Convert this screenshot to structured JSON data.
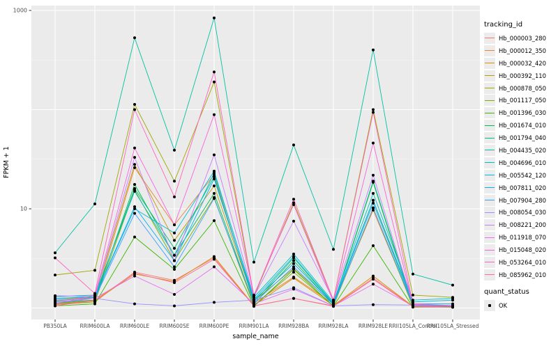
{
  "figure": {
    "x_axis_title": "sample_name",
    "y_axis_title": "FPKM + 1"
  },
  "legend": {
    "tracking_title": "tracking_id",
    "quant_title": "quant_status",
    "quant_ok_label": "OK"
  },
  "colors": {
    "panel_bg": "#EBEBEB",
    "grid": "#FFFFFF",
    "tick": "#333333",
    "tick_label": "#4D4D4D",
    "point": "#000000",
    "legend_key_bg": "#ECECEC"
  },
  "chart_data": {
    "type": "line",
    "title": "",
    "xlabel": "sample_name",
    "ylabel": "FPKM + 1",
    "y_scale": "log10",
    "ylim": [
      0.78,
      1150
    ],
    "grid": true,
    "legend_position": "right",
    "y_ticks": [
      {
        "label": "1000",
        "value": 1000
      },
      {
        "label": "10",
        "value": 10
      }
    ],
    "y_gridlines_major": [
      1,
      10,
      100,
      1000
    ],
    "y_gridlines_minor": [
      3.162,
      31.62,
      316.2
    ],
    "categories": [
      "PB350LA",
      "RRIM600LA",
      "RRIM600LE",
      "RRIM600SE",
      "RRIM600PE",
      "RRIM901LA",
      "RRIM928BA",
      "RRIM928LA",
      "RRIM928LE",
      "RRII105LA_Control",
      "RRII105LA_Stressed"
    ],
    "quant_status": "OK",
    "series": [
      {
        "name": "Hb_000003_280",
        "color": "#F8766D",
        "values": [
          1.08,
          1.15,
          2.3,
          1.9,
          3.2,
          1.05,
          1.25,
          1.05,
          2.0,
          1.04,
          1.03
        ]
      },
      {
        "name": "Hb_000012_350",
        "color": "#EA8331",
        "values": [
          1.15,
          1.2,
          26,
          6.9,
          22,
          1.12,
          2.05,
          1.1,
          9.7,
          1.06,
          1.04
        ]
      },
      {
        "name": "Hb_000032_420",
        "color": "#D89000",
        "values": [
          1.1,
          1.18,
          2.2,
          1.85,
          3.3,
          1.06,
          2.0,
          1.06,
          2.1,
          1.04,
          1.02
        ]
      },
      {
        "name": "Hb_000392_110",
        "color": "#C09B00",
        "values": [
          1.2,
          1.3,
          28,
          4.8,
          17,
          1.18,
          2.5,
          1.1,
          12.2,
          1.08,
          1.05
        ]
      },
      {
        "name": "Hb_000878_050",
        "color": "#A3A500",
        "values": [
          2.15,
          2.4,
          113,
          19,
          190,
          1.3,
          11.5,
          1.2,
          100,
          1.35,
          1.28
        ]
      },
      {
        "name": "Hb_001117_050",
        "color": "#7CAE00",
        "values": [
          1.1,
          1.15,
          15.5,
          3.0,
          13,
          1.06,
          2.3,
          1.05,
          10.2,
          1.03,
          1.02
        ]
      },
      {
        "name": "Hb_001396_030",
        "color": "#39B600",
        "values": [
          1.05,
          1.1,
          5.2,
          2.45,
          7.6,
          1.04,
          2.45,
          1.04,
          4.25,
          1.02,
          1.02
        ]
      },
      {
        "name": "Hb_001674_010",
        "color": "#00BB4E",
        "values": [
          1.12,
          1.2,
          17.6,
          3.4,
          14.3,
          1.1,
          3.0,
          1.08,
          18.5,
          1.05,
          1.04
        ]
      },
      {
        "name": "Hb_001794_040",
        "color": "#00BF7D",
        "values": [
          1.18,
          1.28,
          16,
          4.0,
          21,
          1.15,
          3.2,
          1.1,
          19,
          1.08,
          1.06
        ]
      },
      {
        "name": "Hb_004435_020",
        "color": "#00C1A3",
        "values": [
          3.6,
          11.2,
          530,
          39,
          840,
          2.9,
          44,
          3.9,
          400,
          2.2,
          1.7
        ]
      },
      {
        "name": "Hb_004696_010",
        "color": "#00BFC4",
        "values": [
          1.3,
          1.35,
          15,
          3.4,
          23,
          1.28,
          3.5,
          1.15,
          14.3,
          1.2,
          1.25
        ]
      },
      {
        "name": "Hb_005542_120",
        "color": "#00BAE0",
        "values": [
          1.25,
          1.3,
          10,
          5.7,
          24,
          1.22,
          3.3,
          1.12,
          12.2,
          1.15,
          1.2
        ]
      },
      {
        "name": "Hb_007811_020",
        "color": "#00B0F6",
        "values": [
          1.24,
          1.3,
          10.5,
          3.0,
          20,
          1.2,
          2.8,
          1.1,
          11.4,
          1.1,
          1.1
        ]
      },
      {
        "name": "Hb_007904_280",
        "color": "#35A2FF",
        "values": [
          1.15,
          1.25,
          9.0,
          2.6,
          12.7,
          1.12,
          2.6,
          1.08,
          10.2,
          1.07,
          1.05
        ]
      },
      {
        "name": "Hb_008054_030",
        "color": "#9590FF",
        "values": [
          1.12,
          1.25,
          1.1,
          1.05,
          1.14,
          1.2,
          1.6,
          1.05,
          1.08,
          1.07,
          1.05
        ]
      },
      {
        "name": "Hb_008221_200",
        "color": "#C77CFF",
        "values": [
          1.33,
          1.3,
          33,
          3.0,
          35,
          1.3,
          7.5,
          1.2,
          21.8,
          1.1,
          1.06
        ]
      },
      {
        "name": "Hb_011918_070",
        "color": "#E76BF3",
        "values": [
          1.2,
          1.25,
          2.1,
          1.37,
          2.6,
          1.1,
          1.55,
          1.05,
          1.74,
          1.05,
          1.02
        ]
      },
      {
        "name": "Hb_015048_020",
        "color": "#FA62DB",
        "values": [
          1.1,
          1.35,
          41,
          6.9,
          89,
          1.35,
          11,
          1.15,
          46,
          1.08,
          1.05
        ]
      },
      {
        "name": "Hb_053264_010",
        "color": "#FF62BC",
        "values": [
          3.2,
          1.4,
          100,
          13.2,
          240,
          1.32,
          12.5,
          1.2,
          94,
          1.1,
          1.05
        ]
      },
      {
        "name": "Hb_085962_010",
        "color": "#FF6A98",
        "values": [
          1.05,
          1.2,
          2.25,
          1.8,
          3.1,
          1.05,
          1.25,
          1.04,
          1.95,
          1.03,
          1.02
        ]
      }
    ]
  }
}
